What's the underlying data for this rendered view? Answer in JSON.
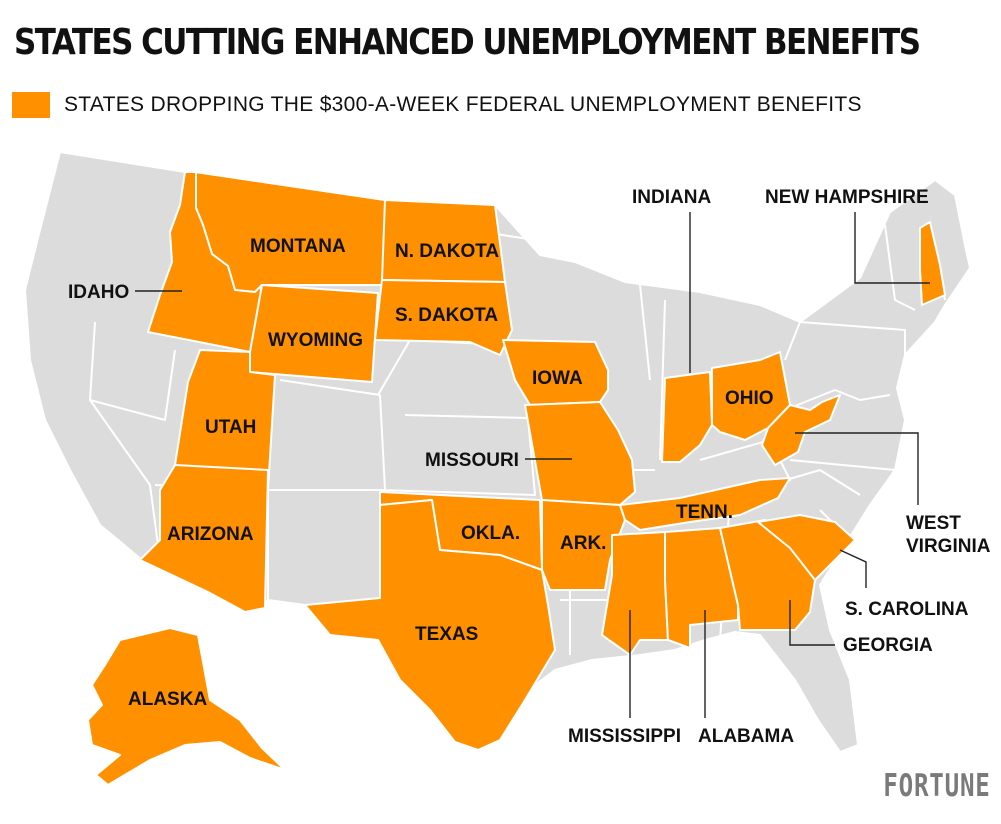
{
  "title": "STATES CUTTING ENHANCED UNEMPLOYMENT BENEFITS",
  "legend": {
    "label": "STATES DROPPING THE $300-A-WEEK FEDERAL UNEMPLOYMENT BENEFITS"
  },
  "colors": {
    "highlight": "#FF9000",
    "other": "#DCDCDC",
    "border": "#FFFFFF",
    "leader": "#222222",
    "brand": "#7A7A7A"
  },
  "states": {
    "idaho": "IDAHO",
    "montana": "MONTANA",
    "n_dakota": "N. DAKOTA",
    "s_dakota": "S. DAKOTA",
    "wyoming": "WYOMING",
    "utah": "UTAH",
    "arizona": "ARIZONA",
    "alaska": "ALASKA",
    "iowa": "IOWA",
    "missouri": "MISSOURI",
    "okla": "OKLA.",
    "texas": "TEXAS",
    "ark": "ARK.",
    "tenn": "TENN.",
    "indiana": "INDIANA",
    "ohio": "OHIO",
    "new_hampshire": "NEW HAMPSHIRE",
    "west_virginia_1": "WEST",
    "west_virginia_2": "VIRGINIA",
    "s_carolina": "S. CAROLINA",
    "georgia": "GEORGIA",
    "mississippi": "MISSISSIPPI",
    "alabama": "ALABAMA"
  },
  "brand": "FORTUNE"
}
